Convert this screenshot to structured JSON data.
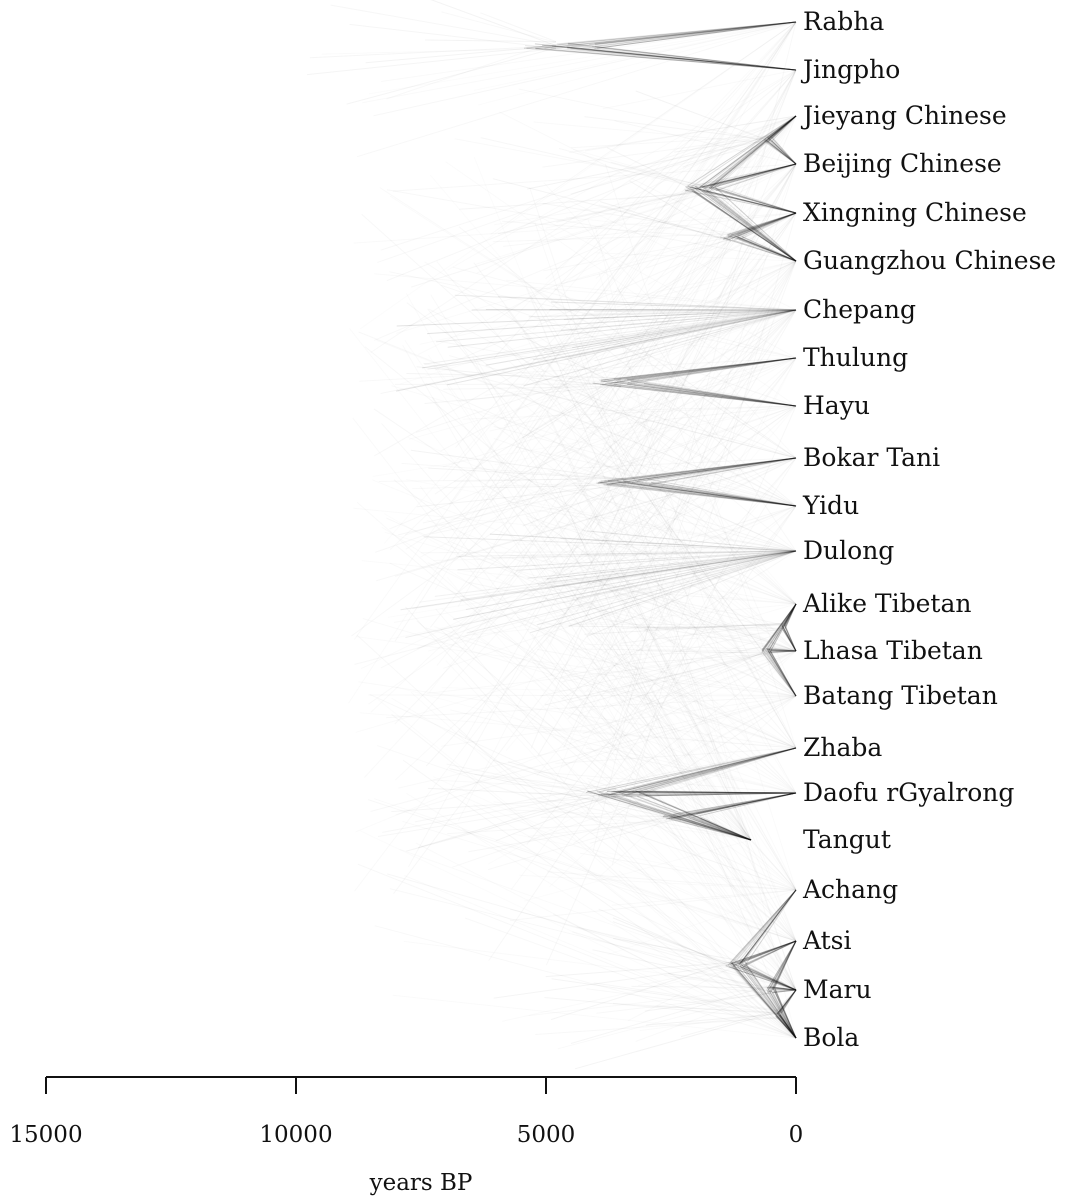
{
  "figure": {
    "type": "densitree-phylogeny",
    "description_colors": {
      "ink": "#111111",
      "background": "#ffffff"
    }
  },
  "taxa": [
    "Rabha",
    "Jingpho",
    "Jieyang Chinese",
    "Beijing Chinese",
    "Xingning Chinese",
    "Guangzhou Chinese",
    "Chepang",
    "Thulung",
    "Hayu",
    "Bokar Tani",
    "Yidu",
    "Dulong",
    "Alike Tibetan",
    "Lhasa Tibetan",
    "Batang Tibetan",
    "Zhaba",
    "Daofu rGyalrong",
    "Tangut",
    "Achang",
    "Atsi",
    "Maru",
    "Bola"
  ],
  "clades": [
    {
      "members": [
        "Rabha",
        "Jingpho"
      ],
      "age": 4800
    },
    {
      "members": [
        "Jieyang Chinese",
        "Beijing Chinese"
      ],
      "age": 550
    },
    {
      "members": [
        "Xingning Chinese",
        "Guangzhou Chinese"
      ],
      "age": 1300
    },
    {
      "members": [
        "Jieyang Chinese",
        "Beijing Chinese",
        "Xingning Chinese",
        "Guangzhou Chinese"
      ],
      "age": 1900
    },
    {
      "members": [
        "Thulung",
        "Hayu"
      ],
      "age": 3500
    },
    {
      "members": [
        "Bokar Tani",
        "Yidu"
      ],
      "age": 3400
    },
    {
      "members": [
        "Alike Tibetan",
        "Lhasa Tibetan"
      ],
      "age": 250
    },
    {
      "members": [
        "Alike Tibetan",
        "Lhasa Tibetan",
        "Batang Tibetan"
      ],
      "age": 600
    },
    {
      "members": [
        "Daofu rGyalrong",
        "Tangut"
      ],
      "age": 2300
    },
    {
      "members": [
        "Zhaba",
        "Daofu rGyalrong",
        "Tangut"
      ],
      "age": 3600
    },
    {
      "members": [
        "Maru",
        "Bola"
      ],
      "age": 350
    },
    {
      "members": [
        "Atsi",
        "Maru",
        "Bola"
      ],
      "age": 500
    },
    {
      "members": [
        "Achang",
        "Atsi",
        "Maru",
        "Bola"
      ],
      "age": 1200
    }
  ],
  "tip_ages": {
    "Tangut": 900
  },
  "axis": {
    "title": "years BP",
    "ticks": [
      {
        "value": 15000,
        "label": "15000"
      },
      {
        "value": 10000,
        "label": "10000"
      },
      {
        "value": 5000,
        "label": "5000"
      },
      {
        "value": 0,
        "label": "0"
      }
    ],
    "range": [
      15000,
      0
    ]
  }
}
